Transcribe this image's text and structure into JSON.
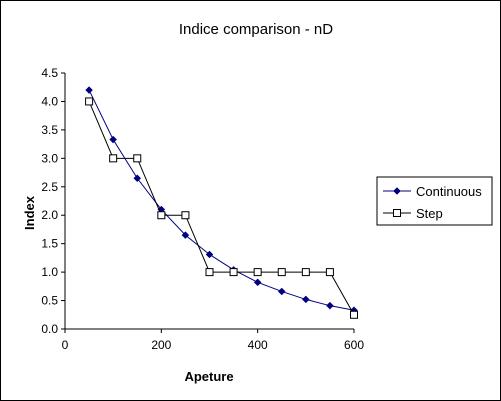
{
  "chart_data": {
    "type": "line",
    "title": "Indice comparison - nD",
    "xlabel": "Apeture",
    "ylabel": "Index",
    "xlim": [
      0,
      600
    ],
    "ylim": [
      0,
      4.5
    ],
    "xticks": [
      0,
      200,
      400,
      600
    ],
    "xtick_labels": [
      "0",
      "200",
      "400",
      "600"
    ],
    "yticks": [
      0,
      0.5,
      1.0,
      1.5,
      2.0,
      2.5,
      3.0,
      3.5,
      4.0,
      4.5
    ],
    "ytick_labels": [
      "0.0",
      "0.5",
      "1.0",
      "1.5",
      "2.0",
      "2.5",
      "3.0",
      "3.5",
      "4.0",
      "4.5"
    ],
    "grid": false,
    "legend_position": "right",
    "series": [
      {
        "name": "Continuous",
        "marker": "diamond",
        "color": "#000080",
        "x": [
          50,
          100,
          150,
          200,
          250,
          300,
          350,
          400,
          450,
          500,
          550,
          600
        ],
        "y": [
          4.2,
          3.33,
          2.65,
          2.1,
          1.65,
          1.31,
          1.04,
          0.82,
          0.66,
          0.52,
          0.41,
          0.33
        ]
      },
      {
        "name": "Step",
        "marker": "square",
        "color": "#000000",
        "x": [
          50,
          100,
          150,
          200,
          250,
          300,
          350,
          400,
          450,
          500,
          550,
          600
        ],
        "y": [
          4.0,
          3.0,
          3.0,
          2.0,
          2.0,
          1.0,
          1.0,
          1.0,
          1.0,
          1.0,
          1.0,
          0.25
        ]
      }
    ]
  }
}
